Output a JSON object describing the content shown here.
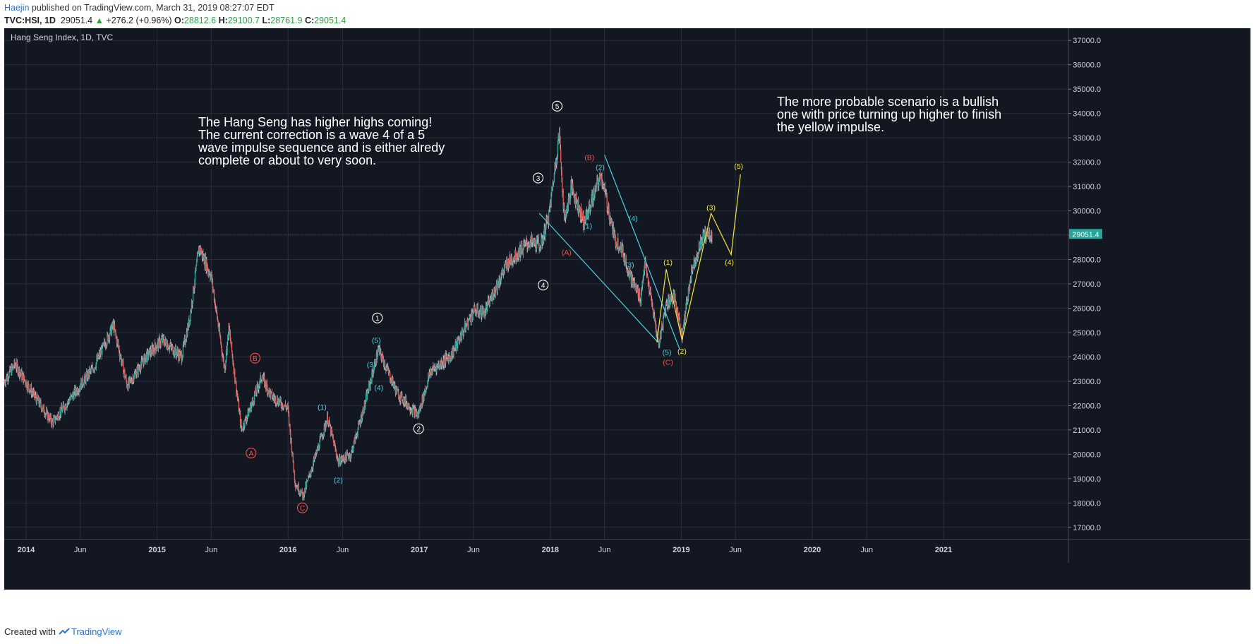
{
  "header": {
    "author": "Haejin",
    "published": " published on TradingView.com, March 31, 2019 08:27:07 EDT"
  },
  "ticker": {
    "symbol": "TVC:HSI, 1D",
    "last": "29051.4",
    "change": "+276.2 (+0.96%)",
    "open_label": "O:",
    "open": "28812.6",
    "high_label": "H:",
    "high": "29100.7",
    "low_label": "L:",
    "low": "28761.9",
    "close_label": "C:",
    "close": "29051.4"
  },
  "footer": {
    "created_with": "Created with",
    "brand": "TradingView"
  },
  "chart_data": {
    "type": "candlestick",
    "title": "Hang Seng Index, 1D, TVC",
    "last_price_label": "29051.4",
    "colors": {
      "background": "#131722",
      "grid": "#2a2e39",
      "up": "#26a69a",
      "down": "#ef5350",
      "axis_text": "#d1d4dc",
      "price_tag": "#26a69a",
      "cyan": "#4dd0e1",
      "yellow": "#f5e63d",
      "red": "#ef5350",
      "white": "#ffffff"
    },
    "y_axis": {
      "min": 16500,
      "max": 37500,
      "ticks": [
        "17000.0",
        "18000.0",
        "19000.0",
        "20000.0",
        "21000.0",
        "22000.0",
        "23000.0",
        "24000.0",
        "25000.0",
        "26000.0",
        "27000.0",
        "28000.0",
        "29000.0",
        "30000.0",
        "31000.0",
        "32000.0",
        "33000.0",
        "34000.0",
        "35000.0",
        "36000.0",
        "37000.0"
      ]
    },
    "x_axis": {
      "range": [
        "2013-11-01",
        "2021-12-15"
      ],
      "ticks": [
        {
          "date": "2014-01-01",
          "label": "2014"
        },
        {
          "date": "2014-06-01",
          "label": "Jun"
        },
        {
          "date": "2015-01-01",
          "label": "2015"
        },
        {
          "date": "2015-06-01",
          "label": "Jun"
        },
        {
          "date": "2016-01-01",
          "label": "2016"
        },
        {
          "date": "2016-06-01",
          "label": "Jun"
        },
        {
          "date": "2017-01-01",
          "label": "2017"
        },
        {
          "date": "2017-06-01",
          "label": "Jun"
        },
        {
          "date": "2018-01-01",
          "label": "2018"
        },
        {
          "date": "2018-06-01",
          "label": "Jun"
        },
        {
          "date": "2019-01-01",
          "label": "2019"
        },
        {
          "date": "2019-06-01",
          "label": "Jun"
        },
        {
          "date": "2020-01-01",
          "label": "2020"
        },
        {
          "date": "2020-06-01",
          "label": "Jun"
        },
        {
          "date": "2021-01-01",
          "label": "2021"
        }
      ]
    },
    "price_path": [
      [
        "2013-11-01",
        23000
      ],
      [
        "2013-12-01",
        23700
      ],
      [
        "2014-01-15",
        22600
      ],
      [
        "2014-03-15",
        21300
      ],
      [
        "2014-05-15",
        22500
      ],
      [
        "2014-07-10",
        23600
      ],
      [
        "2014-09-01",
        25300
      ],
      [
        "2014-10-10",
        22800
      ],
      [
        "2014-12-01",
        24000
      ],
      [
        "2015-01-15",
        24700
      ],
      [
        "2015-03-10",
        24000
      ],
      [
        "2015-04-01",
        25500
      ],
      [
        "2015-04-28",
        28500
      ],
      [
        "2015-06-01",
        27300
      ],
      [
        "2015-07-08",
        23500
      ],
      [
        "2015-07-20",
        25200
      ],
      [
        "2015-08-24",
        21000
      ],
      [
        "2015-09-15",
        21800
      ],
      [
        "2015-10-20",
        23200
      ],
      [
        "2015-11-15",
        22400
      ],
      [
        "2015-12-31",
        21900
      ],
      [
        "2016-01-21",
        18800
      ],
      [
        "2016-02-12",
        18300
      ],
      [
        "2016-04-20",
        21500
      ],
      [
        "2016-05-20",
        19700
      ],
      [
        "2016-06-24",
        20000
      ],
      [
        "2016-08-01",
        22000
      ],
      [
        "2016-09-09",
        24300
      ],
      [
        "2016-11-01",
        22500
      ],
      [
        "2016-12-28",
        21600
      ],
      [
        "2017-02-01",
        23400
      ],
      [
        "2017-04-01",
        24100
      ],
      [
        "2017-06-01",
        25900
      ],
      [
        "2017-07-01",
        25800
      ],
      [
        "2017-09-01",
        27800
      ],
      [
        "2017-11-01",
        28700
      ],
      [
        "2017-12-06",
        28600
      ],
      [
        "2017-12-29",
        29900
      ],
      [
        "2018-01-26",
        33200
      ],
      [
        "2018-02-09",
        29600
      ],
      [
        "2018-03-01",
        31000
      ],
      [
        "2018-04-05",
        29500
      ],
      [
        "2018-05-22",
        31500
      ],
      [
        "2018-06-30",
        28800
      ],
      [
        "2018-07-15",
        28600
      ],
      [
        "2018-08-15",
        27200
      ],
      [
        "2018-09-10",
        26400
      ],
      [
        "2018-09-21",
        27900
      ],
      [
        "2018-10-30",
        24500
      ],
      [
        "2018-11-20",
        26200
      ],
      [
        "2018-12-12",
        26500
      ],
      [
        "2019-01-03",
        24900
      ],
      [
        "2019-01-30",
        27600
      ],
      [
        "2019-03-04",
        29000
      ],
      [
        "2019-03-29",
        29051.4
      ]
    ],
    "annotations": [
      {
        "label": "5",
        "style": "circle",
        "color": "white",
        "date": "2018-01-20",
        "price": 34300
      },
      {
        "label": "3",
        "style": "circle",
        "color": "white",
        "date": "2017-11-28",
        "price": 31350
      },
      {
        "label": "4",
        "style": "circle",
        "color": "white",
        "date": "2017-12-12",
        "price": 26950
      },
      {
        "label": "1",
        "style": "circle",
        "color": "white",
        "date": "2016-09-06",
        "price": 25600
      },
      {
        "label": "2",
        "style": "circle",
        "color": "white",
        "date": "2016-12-30",
        "price": 21050
      },
      {
        "label": "A",
        "style": "circle",
        "color": "red",
        "date": "2015-09-20",
        "price": 20050
      },
      {
        "label": "B",
        "style": "circle",
        "color": "red",
        "date": "2015-10-01",
        "price": 23950
      },
      {
        "label": "C",
        "style": "circle",
        "color": "red",
        "date": "2016-02-10",
        "price": 17800
      },
      {
        "label": "(A)",
        "style": "text",
        "color": "red",
        "date": "2018-02-15",
        "price": 28300
      },
      {
        "label": "(B)",
        "style": "text",
        "color": "red",
        "date": "2018-04-20",
        "price": 32200
      },
      {
        "label": "(C)",
        "style": "text",
        "color": "red",
        "date": "2018-11-25",
        "price": 23800
      },
      {
        "label": "(1)",
        "style": "text",
        "color": "cyan",
        "date": "2018-04-15",
        "price": 29400
      },
      {
        "label": "(2)",
        "style": "text",
        "color": "cyan",
        "date": "2018-05-20",
        "price": 31800
      },
      {
        "label": "(3)",
        "style": "text",
        "color": "cyan",
        "date": "2018-08-10",
        "price": 27800
      },
      {
        "label": "(4)",
        "style": "text",
        "color": "cyan",
        "date": "2018-08-20",
        "price": 29700
      },
      {
        "label": "(5)",
        "style": "text",
        "color": "cyan",
        "date": "2018-11-22",
        "price": 24200
      },
      {
        "label": "(1)",
        "style": "text",
        "color": "cyan",
        "date": "2016-04-05",
        "price": 21950
      },
      {
        "label": "(2)",
        "style": "text",
        "color": "cyan",
        "date": "2016-05-20",
        "price": 18950
      },
      {
        "label": "(3)",
        "style": "text",
        "color": "cyan",
        "date": "2016-08-20",
        "price": 23700
      },
      {
        "label": "(4)",
        "style": "text",
        "color": "cyan",
        "date": "2016-09-10",
        "price": 22750
      },
      {
        "label": "(5)",
        "style": "text",
        "color": "cyan",
        "date": "2016-09-03",
        "price": 24700
      },
      {
        "label": "(1)",
        "style": "text",
        "color": "yellow",
        "date": "2018-11-25",
        "price": 27900
      },
      {
        "label": "(2)",
        "style": "text",
        "color": "yellow",
        "date": "2019-01-03",
        "price": 24250
      },
      {
        "label": "(3)",
        "style": "text",
        "color": "yellow",
        "date": "2019-03-25",
        "price": 30150
      },
      {
        "label": "(4)",
        "style": "text",
        "color": "yellow",
        "date": "2019-05-15",
        "price": 27900
      },
      {
        "label": "(5)",
        "style": "text",
        "color": "yellow",
        "date": "2019-06-10",
        "price": 31850
      }
    ],
    "trend_lines": [
      {
        "color": "cyan",
        "points": [
          [
            "2017-12-01",
            29900
          ],
          [
            "2018-10-28",
            24600
          ]
        ]
      },
      {
        "color": "cyan",
        "points": [
          [
            "2018-06-01",
            32300
          ],
          [
            "2018-12-28",
            24300
          ]
        ]
      },
      {
        "color": "yellow",
        "points": [
          [
            "2018-10-25",
            24600
          ],
          [
            "2018-11-20",
            27600
          ],
          [
            "2019-01-03",
            24700
          ],
          [
            "2019-03-25",
            29900
          ],
          [
            "2019-05-20",
            28200
          ],
          [
            "2019-06-15",
            31500
          ]
        ]
      }
    ],
    "notes": [
      {
        "lines": [
          "The Hang Seng has higher highs coming!",
          "The current correction is a wave 4 of a 5",
          "wave impulse sequence and is either alredy",
          "complete or about to very soon."
        ]
      },
      {
        "lines": [
          "The more probable scenario is a bullish",
          "one with price turning up higher to finish",
          "the yellow impulse."
        ]
      }
    ]
  }
}
